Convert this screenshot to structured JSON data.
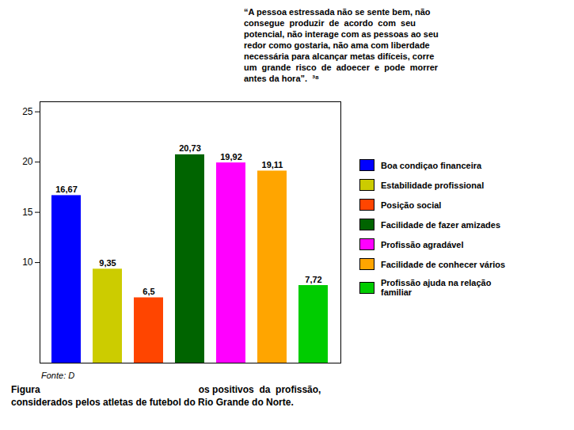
{
  "chart_data": {
    "type": "bar",
    "categories": [
      "Boa condiçao financeira",
      "Estabilidade profissional",
      "Posição social",
      "Facilidade de fazer amizades",
      "Profissão agradável",
      "Facilidade de conhecer vários",
      "Profissão ajuda na relação\nfamiliar"
    ],
    "values": [
      16.67,
      9.35,
      6.5,
      20.73,
      19.92,
      19.11,
      7.72
    ],
    "value_labels": [
      "16,67",
      "9,35",
      "6,5",
      "20,73",
      "19,92",
      "19,11",
      "7,72"
    ],
    "colors": [
      "#0000FF",
      "#CCCC00",
      "#FF4500",
      "#006400",
      "#FF00FF",
      "#FFA500",
      "#00CC00"
    ],
    "ylim": [
      0,
      26
    ],
    "yticks": [
      10,
      15,
      20,
      25
    ],
    "grid": false,
    "legend": "right",
    "data_labels": true,
    "tick_labels": "y",
    "annotations": [
      "“A pessoa estressada não se sente bem, não\nconsegue  produzir  de  acordo  com  seu\npotencial, não interage com as pessoas ao seu\nredor como gostaria, não ama com liberdade\nnecessária para alcançar metas difíceis, corre\num  grande  risco  de  adoecer  e  pode  morrer\nantes da hora”.  ³⁸",
      "Fonte: D",
      "Figura                                                            os positivos  da  profissão,\nconsiderados pelos atletas de futebol do Rio Grande do Norte."
    ]
  }
}
